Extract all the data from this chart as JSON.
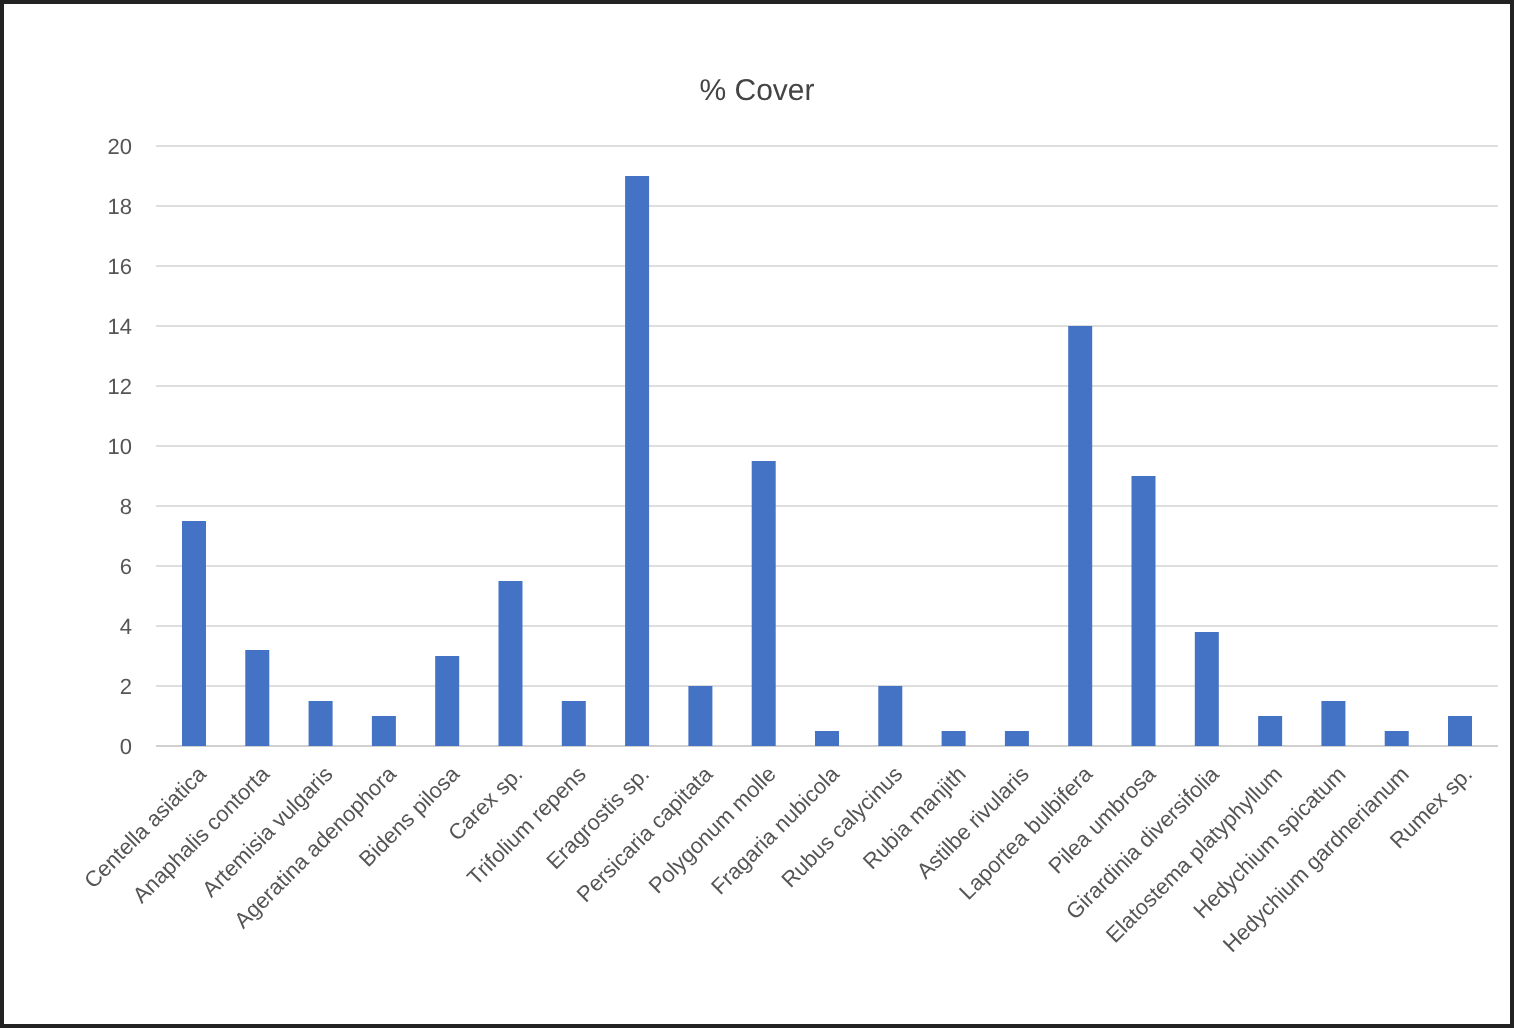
{
  "chart_data": {
    "type": "bar",
    "title": "% Cover",
    "categories": [
      "Centella asiatica",
      "Anaphalis contorta",
      "Artemisia vulgaris",
      "Ageratina adenophora",
      "Bidens pilosa",
      "Carex sp.",
      "Trifolium repens",
      "Eragrostis sp.",
      "Persicaria capitata",
      "Polygonum molle",
      "Fragaria nubicola",
      "Rubus calycinus",
      "Rubia manjith",
      "Astilbe rivularis",
      "Laportea bulbifera",
      "Pilea umbrosa",
      "Girardinia diversifolia",
      "Elatostema platyphyllum",
      "Hedychium spicatum",
      "Hedychium gardnerianum",
      "Rumex sp."
    ],
    "values": [
      7.5,
      3.2,
      1.5,
      1,
      3,
      5.5,
      1.5,
      19,
      2,
      9.5,
      0.5,
      2,
      0.5,
      0.5,
      14,
      9,
      3.8,
      1,
      1.5,
      0.5,
      1
    ],
    "color": "#4472c4",
    "ylim": [
      0,
      20
    ],
    "yticks": [
      0,
      2,
      4,
      6,
      8,
      10,
      12,
      14,
      16,
      18,
      20
    ],
    "grid": "y"
  }
}
